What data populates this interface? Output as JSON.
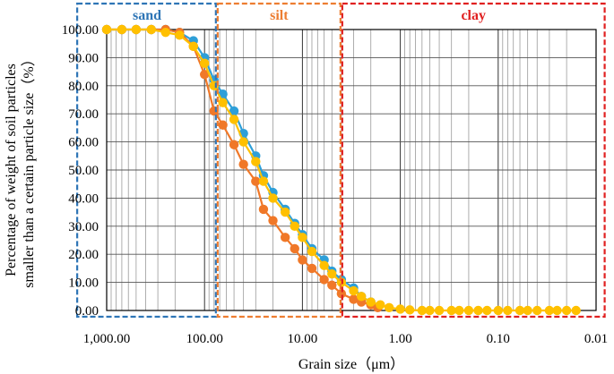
{
  "chart_data": {
    "type": "line",
    "xlabel": "Grain size（μm）",
    "ylabel_line1": "Percentage of weight of soil particles",
    "ylabel_line2": "smaller than a certain particle size（%）",
    "x_scale": "log-reversed",
    "xlim": [
      1000,
      0.01
    ],
    "ylim": [
      0,
      100
    ],
    "x_ticks": [
      {
        "value": 1000,
        "label": "1,000.00"
      },
      {
        "value": 100,
        "label": "100.00"
      },
      {
        "value": 10,
        "label": "10.00"
      },
      {
        "value": 1,
        "label": "1.00"
      },
      {
        "value": 0.1,
        "label": "0.10"
      },
      {
        "value": 0.01,
        "label": "0.01"
      }
    ],
    "y_ticks": [
      {
        "value": 0,
        "label": "0.00"
      },
      {
        "value": 10,
        "label": "10.00"
      },
      {
        "value": 20,
        "label": "20.00"
      },
      {
        "value": 30,
        "label": "30.00"
      },
      {
        "value": 40,
        "label": "40.00"
      },
      {
        "value": 50,
        "label": "50.00"
      },
      {
        "value": 60,
        "label": "60.00"
      },
      {
        "value": 70,
        "label": "70.00"
      },
      {
        "value": 80,
        "label": "80.00"
      },
      {
        "value": 90,
        "label": "90.00"
      },
      {
        "value": 100,
        "label": "100.00"
      }
    ],
    "grid": true,
    "regions": [
      {
        "label": "sand",
        "from": 2000,
        "to": 75,
        "color": "#2e75b6"
      },
      {
        "label": "silt",
        "from": 75,
        "to": 4,
        "color": "#ed7d31"
      },
      {
        "label": "clay",
        "from": 4,
        "to": 0.008,
        "color": "#e02020"
      }
    ],
    "series": [
      {
        "color": "#2e9fd8",
        "x": [
          1000,
          700,
          500,
          350,
          250,
          180,
          130,
          100,
          80,
          65,
          50,
          40,
          30,
          25,
          20,
          15,
          12,
          10,
          8,
          6,
          5,
          4,
          3,
          2.5,
          2
        ],
        "y": [
          100,
          100,
          100,
          100,
          100,
          99,
          96,
          90,
          82,
          77,
          71,
          63,
          55,
          48,
          42,
          36,
          31,
          27,
          22,
          18,
          14,
          11,
          8,
          5,
          3
        ]
      },
      {
        "color": "#f07828",
        "x": [
          1000,
          700,
          500,
          350,
          250,
          180,
          130,
          100,
          80,
          65,
          50,
          40,
          30,
          25,
          20,
          15,
          12,
          10,
          8,
          6,
          5,
          4,
          3,
          2.5,
          2,
          1.7
        ],
        "y": [
          100,
          100,
          100,
          100,
          100,
          99,
          94,
          84,
          71,
          66,
          59,
          52,
          46,
          36,
          32,
          26,
          22,
          18,
          15,
          11,
          9,
          6,
          4,
          3,
          2,
          1
        ]
      },
      {
        "color": "#ffc000",
        "x": [
          1000,
          700,
          500,
          350,
          250,
          180,
          130,
          100,
          80,
          65,
          50,
          40,
          30,
          25,
          20,
          15,
          12,
          10,
          8,
          6,
          5,
          4,
          3,
          2.5,
          2,
          1.6,
          1.3,
          1,
          0.8,
          0.6,
          0.5,
          0.4,
          0.3,
          0.25,
          0.2,
          0.16,
          0.13,
          0.1,
          0.08,
          0.06,
          0.05,
          0.04,
          0.03,
          0.025,
          0.02,
          0.016
        ],
        "y": [
          100,
          100,
          100,
          100,
          99,
          98,
          94,
          88,
          80,
          74,
          68,
          60,
          53,
          46,
          40,
          35,
          30,
          26,
          21,
          16,
          13,
          10,
          7,
          5,
          3,
          2,
          1,
          0.5,
          0.2,
          0,
          0,
          0,
          0,
          0,
          0,
          0,
          0,
          0,
          0,
          0,
          0,
          0,
          0,
          0,
          0,
          0
        ]
      }
    ]
  }
}
